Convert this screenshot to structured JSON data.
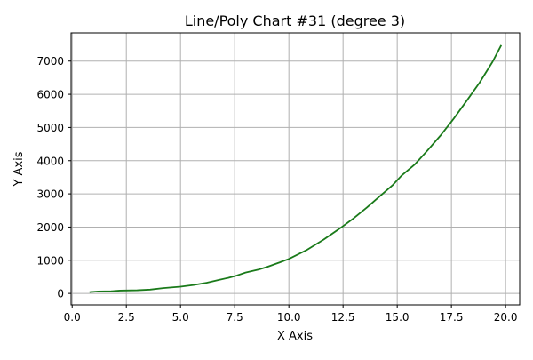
{
  "chart_data": {
    "type": "line",
    "title": "Line/Poly Chart #31 (degree 3)",
    "xlabel": "X Axis",
    "ylabel": "Y Axis",
    "xlim": [
      -0.05,
      20.65
    ],
    "ylim": [
      -345,
      7850
    ],
    "xticks": [
      0.0,
      2.5,
      5.0,
      7.5,
      10.0,
      12.5,
      15.0,
      17.5,
      20.0
    ],
    "xtick_labels": [
      "0.0",
      "2.5",
      "5.0",
      "7.5",
      "10.0",
      "12.5",
      "15.0",
      "17.5",
      "20.0"
    ],
    "yticks": [
      0,
      1000,
      2000,
      3000,
      4000,
      5000,
      6000,
      7000
    ],
    "ytick_labels": [
      "0",
      "1000",
      "2000",
      "3000",
      "4000",
      "5000",
      "6000",
      "7000"
    ],
    "grid": true,
    "legend": "none",
    "series": [
      {
        "color": "#1a7a1a",
        "x": [
          0.8,
          1.2,
          1.8,
          2.2,
          3.0,
          3.6,
          4.2,
          5.0,
          5.6,
          6.2,
          6.8,
          7.2,
          7.6,
          8.0,
          8.6,
          9.0,
          9.6,
          10.0,
          10.8,
          11.6,
          12.4,
          13.0,
          13.6,
          14.2,
          14.8,
          15.2,
          15.8,
          16.4,
          17.0,
          17.6,
          18.2,
          18.8,
          19.4,
          19.8
        ],
        "y": [
          40,
          60,
          65,
          85,
          95,
          115,
          160,
          205,
          255,
          320,
          410,
          470,
          540,
          630,
          720,
          800,
          940,
          1040,
          1300,
          1620,
          1980,
          2270,
          2590,
          2930,
          3270,
          3550,
          3880,
          4310,
          4760,
          5260,
          5800,
          6350,
          6980,
          7480
        ]
      }
    ]
  }
}
